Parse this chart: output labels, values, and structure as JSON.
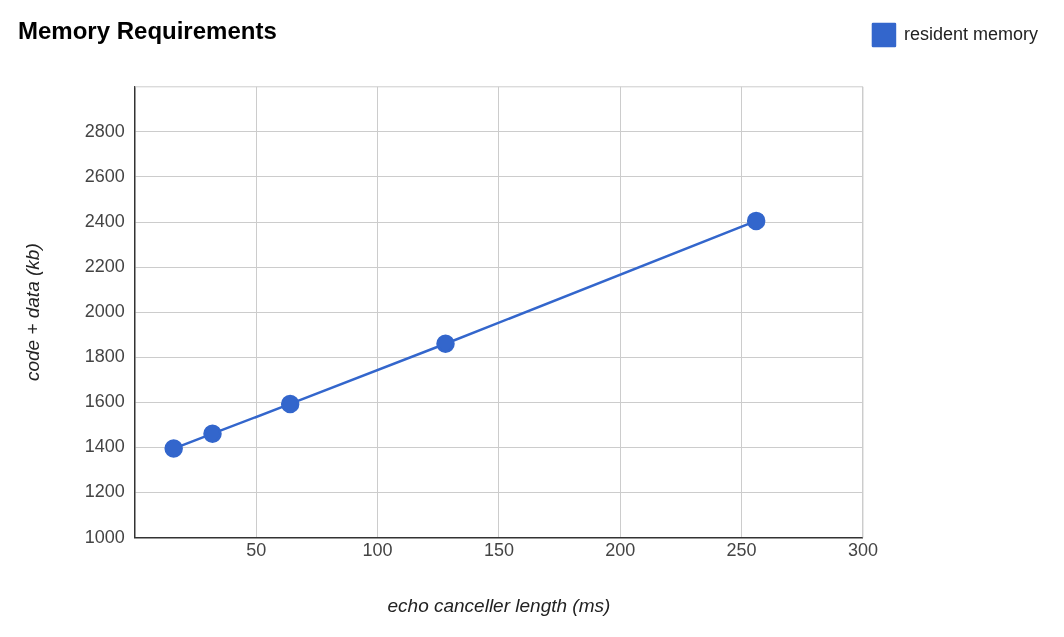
{
  "chart_data": {
    "type": "line",
    "title": "Memory Requirements",
    "xlabel": "echo canceller length (ms)",
    "ylabel": "code + data (kb)",
    "x": [
      16,
      32,
      64,
      128,
      256
    ],
    "series": [
      {
        "name": "resident memory",
        "color": "#3366cc",
        "values": [
          1395,
          1461,
          1593,
          1860,
          2405
        ]
      }
    ],
    "xlim": [
      0,
      300
    ],
    "xticks": [
      50,
      100,
      150,
      200,
      250,
      300
    ],
    "ylim": [
      1000,
      3000
    ],
    "yticks": [
      1000,
      1200,
      1400,
      1600,
      1800,
      2000,
      2200,
      2400,
      2600,
      2800
    ],
    "grid": true,
    "legend": "top right",
    "marker": "circle",
    "line_style": "solid"
  }
}
